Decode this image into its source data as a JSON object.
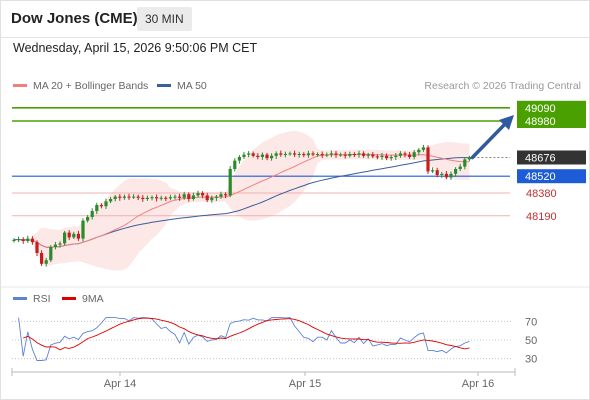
{
  "header": {
    "title": "Dow Jones (CME)",
    "interval": "30 MIN",
    "datetime": "Wednesday, April 15, 2026 9:50:06 PM CET"
  },
  "legend": {
    "ma20": "MA 20 + Bollinger Bands",
    "ma50": "MA 50",
    "credit": "Research © 2026 Trading Central"
  },
  "colors": {
    "candle_up": "#2b8a2b",
    "candle_down": "#c41e1e",
    "ma20": "#f08080",
    "ma50": "#3a5f9a",
    "bollinger_fill": "#fde4e4",
    "resistance": "#4aa000",
    "support": "#f2b0b0",
    "pivot": "#1e5bd6",
    "last_price": "#333333",
    "arrow": "#2f5a9e",
    "rsi": "#5b83d8",
    "rsi_ma": "#e00000"
  },
  "chart_data": [
    {
      "type": "candlestick",
      "title": "",
      "x_labels": [
        "Apr 14",
        "Apr 15",
        "Apr 16"
      ],
      "y_range": [
        47680,
        49180
      ],
      "series": [
        {
          "name": "MA 20 + Bollinger Bands"
        },
        {
          "name": "MA 50"
        }
      ],
      "levels": [
        {
          "value": 49090,
          "label": "49090",
          "kind": "resistance"
        },
        {
          "value": 48980,
          "label": "48980",
          "kind": "resistance"
        },
        {
          "value": 48676,
          "label": "48676",
          "kind": "last"
        },
        {
          "value": 48520,
          "label": "48520",
          "kind": "pivot"
        },
        {
          "value": 48380,
          "label": "48380",
          "kind": "support"
        },
        {
          "value": 48190,
          "label": "48190",
          "kind": "support"
        }
      ],
      "arrow": {
        "from": 48676,
        "to": 49030
      },
      "path": [
        47990,
        47995,
        47980,
        48000,
        47970,
        47880,
        47790,
        47820,
        47930,
        47950,
        47960,
        48050,
        48010,
        48040,
        48000,
        48150,
        48180,
        48230,
        48280,
        48270,
        48310,
        48330,
        48350,
        48340,
        48350,
        48345,
        48350,
        48340,
        48330,
        48340,
        48345,
        48335,
        48340,
        48335,
        48345,
        48350,
        48340,
        48370,
        48330,
        48360,
        48380,
        48360,
        48320,
        48340,
        48350,
        48370,
        48360,
        48580,
        48650,
        48680,
        48700,
        48710,
        48690,
        48680,
        48700,
        48670,
        48690,
        48710,
        48700,
        48705,
        48710,
        48700,
        48705,
        48695,
        48710,
        48700,
        48705,
        48695,
        48700,
        48710,
        48700,
        48700,
        48690,
        48705,
        48700,
        48710,
        48690,
        48700,
        48685,
        48680,
        48690,
        48670,
        48680,
        48690,
        48710,
        48700,
        48680,
        48720,
        48740,
        48760,
        48560,
        48570,
        48530,
        48540,
        48510,
        48540,
        48580,
        48600,
        48660,
        48676
      ]
    },
    {
      "type": "line",
      "title": "",
      "series": [
        {
          "name": "RSI"
        },
        {
          "name": "9MA"
        }
      ],
      "y_ticks": [
        70,
        50,
        30
      ],
      "y_range": [
        20,
        80
      ]
    }
  ]
}
